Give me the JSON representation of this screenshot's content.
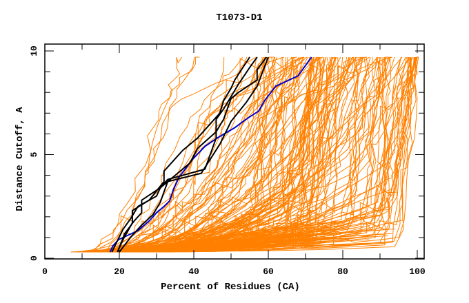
{
  "chart_data": {
    "type": "line",
    "title": "T1073-D1",
    "xlabel": "Percent of Residues (CA)",
    "ylabel": "Distance Cutoff, A",
    "xlim": [
      0,
      100
    ],
    "ylim": [
      0,
      10
    ],
    "x_ticks": [
      0,
      20,
      40,
      60,
      80,
      100
    ],
    "y_ticks": [
      0,
      5,
      10
    ],
    "x_tick_labels": [
      "0",
      "20",
      "40",
      "60",
      "80",
      "100"
    ],
    "y_tick_labels": [
      "0",
      "5",
      "10"
    ],
    "grid": false,
    "colors": {
      "models": "#ff8000",
      "highlight_black": "#000000",
      "highlight_blue": "#0000cc"
    },
    "series": [
      {
        "name": "blue",
        "color": "#0000cc",
        "points": [
          [
            17.5,
            0.3
          ],
          [
            18.3,
            0.6
          ],
          [
            19.8,
            0.9
          ],
          [
            25,
            1.33
          ],
          [
            28.2,
            1.83
          ],
          [
            30,
            2.2
          ],
          [
            32,
            2.5
          ],
          [
            33.5,
            2.76
          ],
          [
            34.5,
            3.3
          ],
          [
            36,
            3.9
          ],
          [
            39.8,
            4.8
          ],
          [
            43,
            5.4
          ],
          [
            46.3,
            5.8
          ],
          [
            51,
            6.3
          ],
          [
            54,
            6.7
          ],
          [
            57.4,
            7.1
          ],
          [
            59,
            7.6
          ],
          [
            62,
            8.3
          ],
          [
            68,
            8.8
          ],
          [
            71.6,
            9.7
          ]
        ]
      },
      {
        "name": "black-1",
        "color": "#000000",
        "points": [
          [
            19.5,
            0.3
          ],
          [
            21,
            0.9
          ],
          [
            23.5,
            1.7
          ],
          [
            23.5,
            2.3
          ],
          [
            28,
            2.8
          ],
          [
            32,
            3.7
          ],
          [
            32,
            4.2
          ],
          [
            37,
            5.2
          ],
          [
            41,
            5.8
          ],
          [
            45,
            6.6
          ],
          [
            47,
            7.0
          ],
          [
            48,
            7.6
          ],
          [
            50,
            8.2
          ],
          [
            51,
            8.6
          ],
          [
            55,
            9.7
          ]
        ]
      },
      {
        "name": "black-2",
        "color": "#000000",
        "points": [
          [
            19.5,
            0.3
          ],
          [
            21.5,
            1.2
          ],
          [
            24,
            1.8
          ],
          [
            26,
            2.2
          ],
          [
            26,
            2.8
          ],
          [
            31,
            3.4
          ],
          [
            33,
            3.8
          ],
          [
            43,
            4.3
          ],
          [
            46,
            5.8
          ],
          [
            46,
            6.7
          ],
          [
            48,
            7.2
          ],
          [
            50,
            7.8
          ],
          [
            52,
            8.4
          ],
          [
            55,
            9.2
          ],
          [
            57,
            9.7
          ]
        ]
      },
      {
        "name": "black-3",
        "color": "#000000",
        "points": [
          [
            18,
            0.3
          ],
          [
            21,
            1.4
          ],
          [
            23,
            1.9
          ],
          [
            25,
            2.5
          ],
          [
            30,
            3.0
          ],
          [
            31,
            3.4
          ],
          [
            35,
            4.0
          ],
          [
            39,
            4.6
          ],
          [
            41,
            5.3
          ],
          [
            46,
            6.1
          ],
          [
            48,
            6.7
          ],
          [
            50,
            7.7
          ],
          [
            52,
            8.0
          ],
          [
            57,
            8.6
          ],
          [
            57,
            9.1
          ],
          [
            59.5,
            9.7
          ]
        ]
      },
      {
        "name": "black-4",
        "color": "#000000",
        "points": [
          [
            20,
            0.3
          ],
          [
            23,
            1.0
          ],
          [
            26,
            1.6
          ],
          [
            29,
            2.1
          ],
          [
            31,
            2.7
          ],
          [
            33,
            3.7
          ],
          [
            42,
            4.1
          ],
          [
            47,
            5.5
          ],
          [
            50,
            6.6
          ],
          [
            54,
            7.5
          ],
          [
            57,
            8.3
          ],
          [
            60,
            9.7
          ]
        ]
      }
    ],
    "model_curves": {
      "count": 150,
      "description": "orange model curves",
      "y_start": 0.3,
      "y_end": 9.7
    }
  }
}
